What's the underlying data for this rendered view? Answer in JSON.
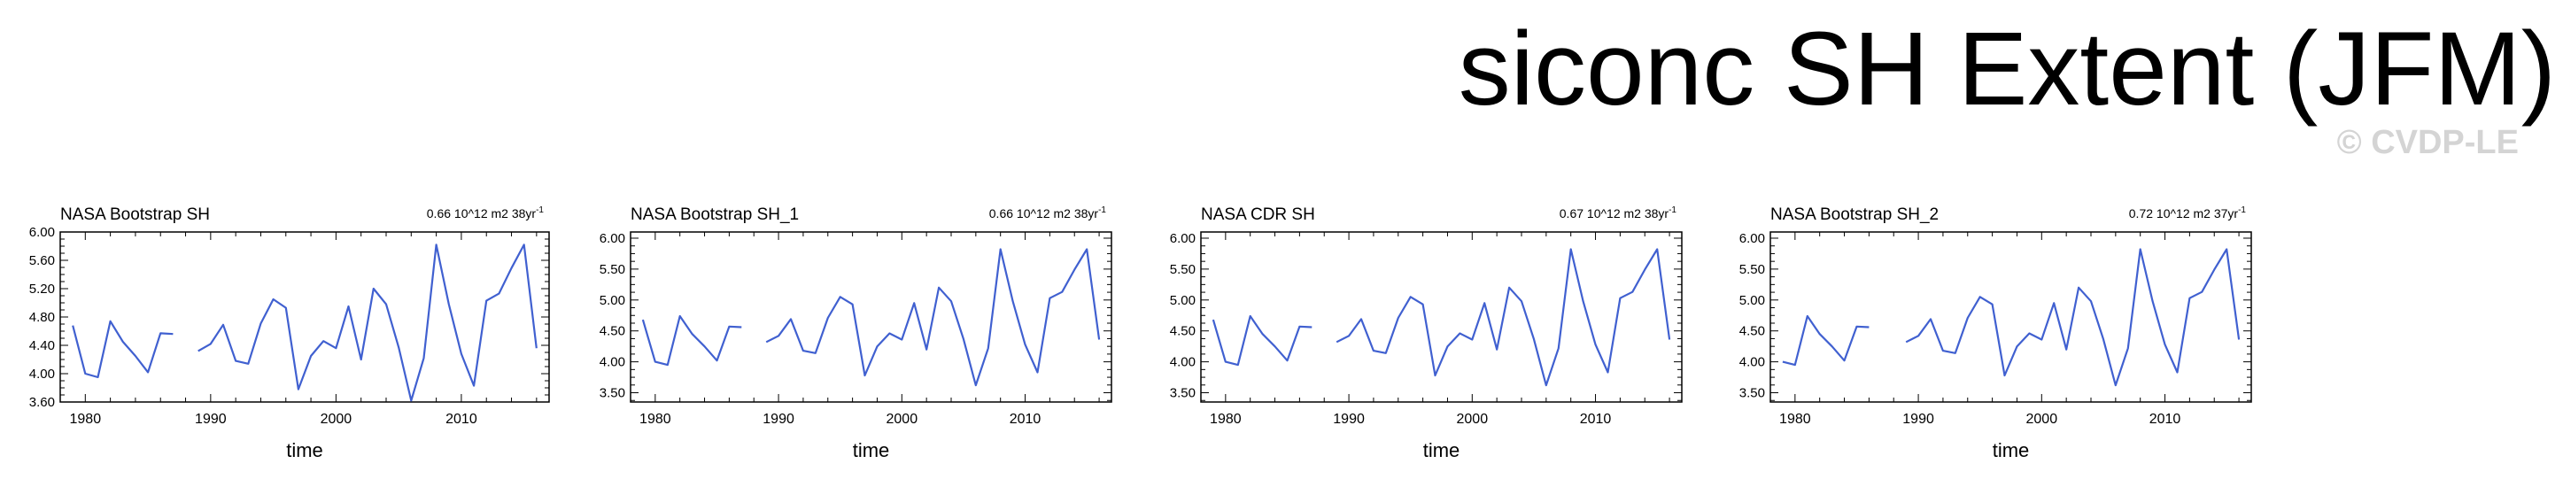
{
  "title": "siconc SH Extent (JFM)",
  "credit": "© CVDP-LE",
  "colors": {
    "line": "#4060d0",
    "axis": "#000000",
    "credit": "#d4d4d4"
  },
  "chart_data": [
    {
      "type": "line",
      "title": "NASA Bootstrap SH",
      "annotation": "0.66 10^12 m2 38yr",
      "annotation_sup": "-1",
      "xlabel": "time",
      "ylabel": "",
      "xlim": [
        1978,
        2017
      ],
      "ylim": [
        3.6,
        6.0
      ],
      "yticks": [
        "6.00",
        "5.60",
        "5.20",
        "4.80",
        "4.40",
        "4.00",
        "3.60"
      ],
      "xticks": [
        "1980",
        "1990",
        "2000",
        "2010"
      ],
      "x": [
        1979,
        1980,
        1981,
        1982,
        1983,
        1984,
        1985,
        1986,
        1987,
        1988,
        1989,
        1990,
        1991,
        1992,
        1993,
        1994,
        1995,
        1996,
        1997,
        1998,
        1999,
        2000,
        2001,
        2002,
        2003,
        2004,
        2005,
        2006,
        2007,
        2008,
        2009,
        2010,
        2011,
        2012,
        2013,
        2014,
        2015,
        2016
      ],
      "y": [
        4.68,
        4.0,
        3.95,
        4.74,
        4.45,
        4.25,
        4.02,
        4.57,
        4.56,
        null,
        4.32,
        4.42,
        4.69,
        4.18,
        4.14,
        4.71,
        5.05,
        4.93,
        3.78,
        4.25,
        4.46,
        4.36,
        4.95,
        4.2,
        5.2,
        4.98,
        4.37,
        3.62,
        4.22,
        5.82,
        4.98,
        4.28,
        3.83,
        5.03,
        5.13,
        5.49,
        5.82,
        4.36
      ]
    },
    {
      "type": "line",
      "title": "NASA Bootstrap SH_1",
      "annotation": "0.66 10^12 m2 38yr",
      "annotation_sup": "-1",
      "xlabel": "time",
      "ylabel": "",
      "xlim": [
        1978,
        2017
      ],
      "ylim": [
        3.35,
        6.1
      ],
      "yticks": [
        "6.00",
        "5.50",
        "5.00",
        "4.50",
        "4.00",
        "3.50"
      ],
      "xticks": [
        "1980",
        "1990",
        "2000",
        "2010"
      ],
      "x": [
        1979,
        1980,
        1981,
        1982,
        1983,
        1984,
        1985,
        1986,
        1987,
        1988,
        1989,
        1990,
        1991,
        1992,
        1993,
        1994,
        1995,
        1996,
        1997,
        1998,
        1999,
        2000,
        2001,
        2002,
        2003,
        2004,
        2005,
        2006,
        2007,
        2008,
        2009,
        2010,
        2011,
        2012,
        2013,
        2014,
        2015,
        2016
      ],
      "y": [
        4.68,
        4.0,
        3.95,
        4.74,
        4.45,
        4.25,
        4.02,
        4.57,
        4.56,
        null,
        4.32,
        4.42,
        4.69,
        4.18,
        4.14,
        4.71,
        5.05,
        4.93,
        3.78,
        4.25,
        4.46,
        4.36,
        4.95,
        4.2,
        5.2,
        4.98,
        4.37,
        3.62,
        4.22,
        5.82,
        4.98,
        4.28,
        3.83,
        5.03,
        5.13,
        5.49,
        5.82,
        4.36
      ]
    },
    {
      "type": "line",
      "title": "NASA CDR SH",
      "annotation": "0.67 10^12 m2 38yr",
      "annotation_sup": "-1",
      "xlabel": "time",
      "ylabel": "",
      "xlim": [
        1978,
        2017
      ],
      "ylim": [
        3.35,
        6.1
      ],
      "yticks": [
        "6.00",
        "5.50",
        "5.00",
        "4.50",
        "4.00",
        "3.50"
      ],
      "xticks": [
        "1980",
        "1990",
        "2000",
        "2010"
      ],
      "x": [
        1979,
        1980,
        1981,
        1982,
        1983,
        1984,
        1985,
        1986,
        1987,
        1988,
        1989,
        1990,
        1991,
        1992,
        1993,
        1994,
        1995,
        1996,
        1997,
        1998,
        1999,
        2000,
        2001,
        2002,
        2003,
        2004,
        2005,
        2006,
        2007,
        2008,
        2009,
        2010,
        2011,
        2012,
        2013,
        2014,
        2015,
        2016
      ],
      "y": [
        4.68,
        4.0,
        3.95,
        4.74,
        4.45,
        4.25,
        4.02,
        4.57,
        4.56,
        null,
        4.32,
        4.42,
        4.69,
        4.18,
        4.14,
        4.71,
        5.05,
        4.93,
        3.78,
        4.25,
        4.46,
        4.36,
        4.95,
        4.2,
        5.2,
        4.98,
        4.37,
        3.62,
        4.22,
        5.82,
        4.98,
        4.28,
        3.83,
        5.03,
        5.13,
        5.49,
        5.82,
        4.36
      ]
    },
    {
      "type": "line",
      "title": "NASA Bootstrap SH_2",
      "annotation": "0.72 10^12 m2 37yr",
      "annotation_sup": "-1",
      "xlabel": "time",
      "ylabel": "",
      "xlim": [
        1978,
        2017
      ],
      "ylim": [
        3.35,
        6.1
      ],
      "yticks": [
        "6.00",
        "5.50",
        "5.00",
        "4.50",
        "4.00",
        "3.50"
      ],
      "xticks": [
        "1980",
        "1990",
        "2000",
        "2010"
      ],
      "x": [
        1979,
        1980,
        1981,
        1982,
        1983,
        1984,
        1985,
        1986,
        1987,
        1988,
        1989,
        1990,
        1991,
        1992,
        1993,
        1994,
        1995,
        1996,
        1997,
        1998,
        1999,
        2000,
        2001,
        2002,
        2003,
        2004,
        2005,
        2006,
        2007,
        2008,
        2009,
        2010,
        2011,
        2012,
        2013,
        2014,
        2015,
        2016
      ],
      "y": [
        4.0,
        3.95,
        4.74,
        4.45,
        4.25,
        4.02,
        4.57,
        4.56,
        null,
        null,
        4.32,
        4.42,
        4.69,
        4.18,
        4.14,
        4.71,
        5.05,
        4.93,
        3.78,
        4.25,
        4.46,
        4.36,
        4.95,
        4.2,
        5.2,
        4.98,
        4.37,
        3.62,
        4.22,
        5.82,
        4.98,
        4.28,
        3.83,
        5.03,
        5.13,
        5.49,
        5.82,
        4.36
      ]
    }
  ]
}
